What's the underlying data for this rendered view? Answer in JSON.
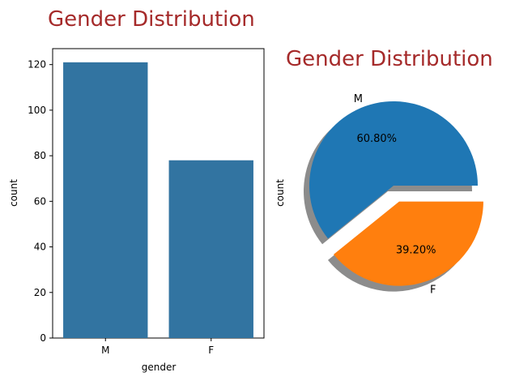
{
  "chart_data": [
    {
      "type": "bar",
      "title": "Gender Distribution",
      "xlabel": "gender",
      "ylabel": "count",
      "categories": [
        "M",
        "F"
      ],
      "values": [
        121,
        78
      ],
      "ylim": [
        0,
        127
      ],
      "yticks": [
        0,
        20,
        40,
        60,
        80,
        100,
        120
      ],
      "bar_color": "#3274a1",
      "grid": false
    },
    {
      "type": "pie",
      "title": "Gender Distribution",
      "ylabel": "count",
      "labels": [
        "M",
        "F"
      ],
      "values": [
        60.8,
        39.2
      ],
      "autopct": [
        "60.80%",
        "39.20%"
      ],
      "colors": [
        "#1f77b4",
        "#ff7f0e"
      ],
      "explode": [
        0,
        0.2
      ],
      "shadow": true
    }
  ]
}
